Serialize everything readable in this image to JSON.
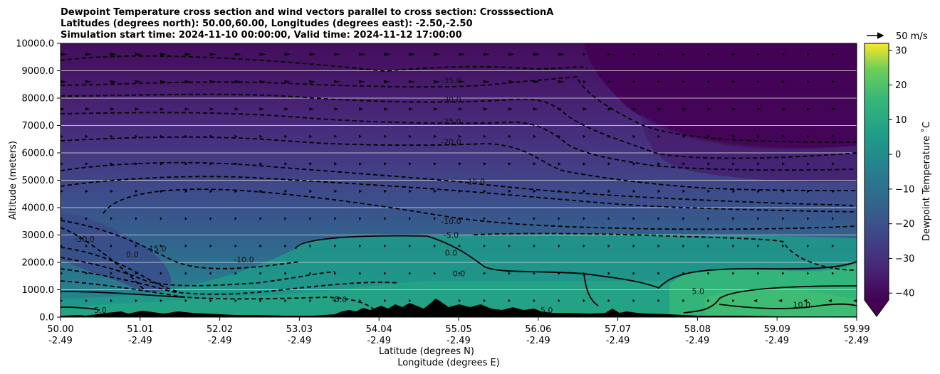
{
  "chart_data": {
    "type": "heatmap",
    "subtype": "filled-contour cross section with wind vectors",
    "title_lines": [
      "Dewpoint Temperature cross section and wind vectors parallel to cross section: CrosssectionA",
      "Latitudes (degrees north): 50.00,60.00, Longitudes (degrees east): -2.50,-2.50",
      "Simulation start time: 2024-11-10 00:00:00, Valid time: 2024-11-12 17:00:00"
    ],
    "xlabel": "Latitude (degrees N)",
    "xlabel2": "Longitude (degrees E)",
    "ylabel": "Altitude (meters)",
    "x_ticks_lat": [
      "50.00",
      "51.01",
      "52.02",
      "53.03",
      "54.04",
      "55.05",
      "56.06",
      "57.07",
      "58.08",
      "59.09",
      "59.99"
    ],
    "x_ticks_lon": [
      "-2.49",
      "-2.49",
      "-2.49",
      "-2.49",
      "-2.49",
      "-2.49",
      "-2.49",
      "-2.49",
      "-2.49",
      "-2.49",
      "-2.49"
    ],
    "y_ticks": [
      "0.0",
      "1000.0",
      "2000.0",
      "3000.0",
      "4000.0",
      "5000.0",
      "6000.0",
      "7000.0",
      "8000.0",
      "9000.0",
      "10000.0"
    ],
    "xlim": [
      50.0,
      59.99
    ],
    "ylim": [
      0,
      10000
    ],
    "grid": "horizontal",
    "colorbar": {
      "label": "Dewpoint Temperature ˚C",
      "ticks": [
        "30",
        "20",
        "10",
        "0",
        "−10",
        "−20",
        "−30",
        "−40"
      ],
      "range": [
        -42,
        32
      ],
      "extend": "min"
    },
    "reference_vector": "50 m/s",
    "contour_levels": [
      -35,
      -30,
      -25,
      -20,
      -15,
      -10,
      -5,
      0,
      5,
      10
    ],
    "contour_labels": [
      {
        "text": "-35.0",
        "lat": 54.9,
        "alt": 8550
      },
      {
        "text": "-30.0",
        "lat": 54.9,
        "alt": 7850
      },
      {
        "text": "-25.0",
        "lat": 54.9,
        "alt": 7050
      },
      {
        "text": "-20.0",
        "lat": 54.9,
        "alt": 6300
      },
      {
        "text": "-15.0",
        "lat": 55.2,
        "alt": 4850
      },
      {
        "text": "-10.0",
        "lat": 54.9,
        "alt": 3400
      },
      {
        "text": "-5.0",
        "lat": 54.9,
        "alt": 2900
      },
      {
        "text": "0.0",
        "lat": 54.9,
        "alt": 2250
      },
      {
        "text": "0.0",
        "lat": 55.0,
        "alt": 1500
      },
      {
        "text": "-30.0",
        "lat": 50.3,
        "alt": 2750
      },
      {
        "text": "-15.0",
        "lat": 51.2,
        "alt": 2400
      },
      {
        "text": "0.0",
        "lat": 50.9,
        "alt": 2200
      },
      {
        "text": "-10.0",
        "lat": 52.3,
        "alt": 2000
      },
      {
        "text": "-5.0",
        "lat": 53.5,
        "alt": 550
      },
      {
        "text": "5.0",
        "lat": 50.5,
        "alt": 150
      },
      {
        "text": "5.0",
        "lat": 56.1,
        "alt": 150
      },
      {
        "text": "5.0",
        "lat": 58.0,
        "alt": 850
      },
      {
        "text": "10.0",
        "lat": 59.3,
        "alt": 350
      }
    ],
    "dewpoint_profile": [
      {
        "alt": 0,
        "temp": 5
      },
      {
        "alt": 1000,
        "temp": 3
      },
      {
        "alt": 2000,
        "temp": -2
      },
      {
        "alt": 3000,
        "temp": -8
      },
      {
        "alt": 4000,
        "temp": -14
      },
      {
        "alt": 5000,
        "temp": -19
      },
      {
        "alt": 6000,
        "temp": -24
      },
      {
        "alt": 7000,
        "temp": -29
      },
      {
        "alt": 8000,
        "temp": -35
      },
      {
        "alt": 9000,
        "temp": -40
      },
      {
        "alt": 10000,
        "temp": -42
      }
    ],
    "wind_direction": "mostly along-section toward increasing latitude aloft; reversed near surface north of 58N"
  }
}
